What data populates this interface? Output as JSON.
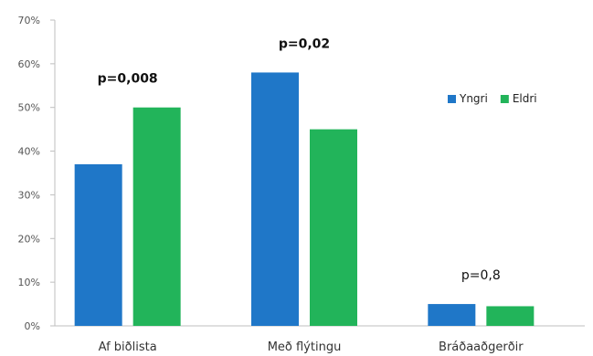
{
  "chart_data": {
    "type": "bar",
    "categories": [
      "Af biðlista",
      "Með flýtingu",
      "Bráðaaðgerðir"
    ],
    "series": [
      {
        "name": "Yngri",
        "values": [
          37,
          58,
          5
        ],
        "color": "#1f77c8"
      },
      {
        "name": "Eldri",
        "values": [
          50,
          45,
          4.5
        ],
        "color": "#22b45a"
      }
    ],
    "y_ticks": [
      "0%",
      "10%",
      "20%",
      "30%",
      "40%",
      "50%",
      "60%",
      "70%"
    ],
    "ylim": [
      0,
      70
    ],
    "annotations": [
      {
        "text": "p=0,008",
        "bold": true
      },
      {
        "text": "p=0,02",
        "bold": true
      },
      {
        "text": "p=0,8",
        "bold": false
      }
    ],
    "legend_position": "right",
    "grid": false
  }
}
